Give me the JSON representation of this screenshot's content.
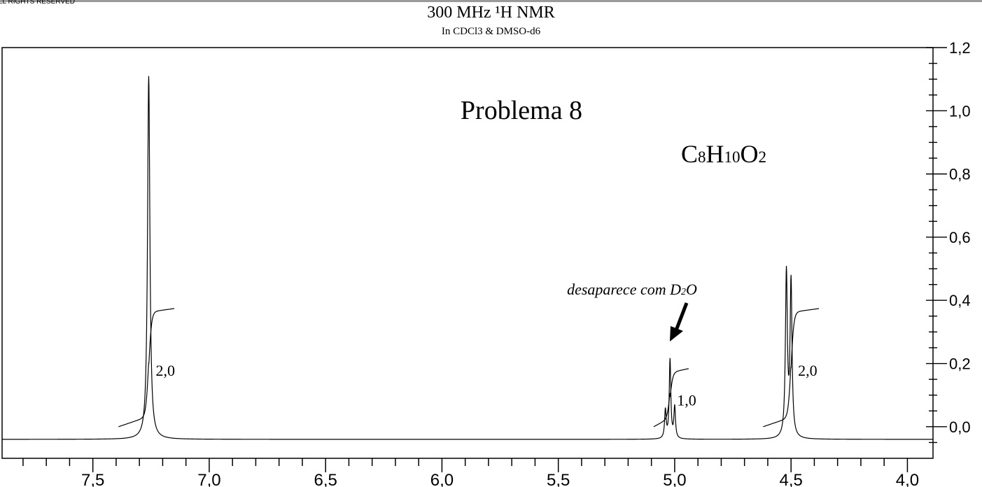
{
  "header": {
    "rights": "LL RIGHTS RESERVED",
    "title": "300 MHz ¹H NMR",
    "subtitle": "In CDCl3 & DMSO-d6"
  },
  "chart_data": {
    "type": "line",
    "title": "Problema 8",
    "formula": {
      "c": "C",
      "c_sub": "8",
      "h": "H",
      "h_sub": "10",
      "o": "O",
      "o_sub": "2"
    },
    "xlabel": "",
    "ylabel": "",
    "x_reversed": true,
    "xlim": [
      7.89,
      3.89
    ],
    "ylim": [
      -0.1,
      1.2
    ],
    "x_ticks": [
      "7,5",
      "7,0",
      "6,5",
      "6,0",
      "5,5",
      "5,0",
      "4,5",
      "4,0"
    ],
    "x_tick_values": [
      7.5,
      7.0,
      6.5,
      6.0,
      5.5,
      5.0,
      4.5,
      4.0
    ],
    "y_ticks": [
      "1,2",
      "1,0",
      "0,8",
      "0,6",
      "0,4",
      "0,2",
      "0,0"
    ],
    "y_tick_values": [
      1.2,
      1.0,
      0.8,
      0.6,
      0.4,
      0.2,
      0.0
    ],
    "baseline": -0.04,
    "peaks": [
      {
        "ppm": 7.26,
        "height": 1.15,
        "width": 0.006
      },
      {
        "ppm": 5.04,
        "height": 0.09,
        "width": 0.004
      },
      {
        "ppm": 5.02,
        "height": 0.25,
        "width": 0.004
      },
      {
        "ppm": 5.0,
        "height": 0.1,
        "width": 0.004
      },
      {
        "ppm": 4.52,
        "height": 0.52,
        "width": 0.005
      },
      {
        "ppm": 4.5,
        "height": 0.49,
        "width": 0.005
      }
    ],
    "integrals": [
      {
        "label": "2,0",
        "from_ppm": 7.39,
        "to_ppm": 7.15,
        "center_ppm": 7.26,
        "y_start": 0.0,
        "y_end": 0.35
      },
      {
        "label": "1,0",
        "from_ppm": 5.09,
        "to_ppm": 4.94,
        "center_ppm": 5.02,
        "y_start": 0.0,
        "y_end": 0.16
      },
      {
        "label": "2,0",
        "from_ppm": 4.62,
        "to_ppm": 4.38,
        "center_ppm": 4.5,
        "y_start": 0.0,
        "y_end": 0.35
      }
    ],
    "annotation": {
      "text": "desaparece com D",
      "sub": "2",
      "tail": "O",
      "ppm": 5.02
    }
  }
}
